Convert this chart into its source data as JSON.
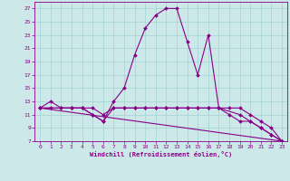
{
  "xlabel": "Windchill (Refroidissement éolien,°C)",
  "bg_color": "#cce8e8",
  "line_color": "#880088",
  "xlim": [
    -0.5,
    23.5
  ],
  "ylim": [
    7,
    28
  ],
  "xticks": [
    0,
    1,
    2,
    3,
    4,
    5,
    6,
    7,
    8,
    9,
    10,
    11,
    12,
    13,
    14,
    15,
    16,
    17,
    18,
    19,
    20,
    21,
    22,
    23
  ],
  "yticks": [
    7,
    9,
    11,
    13,
    15,
    17,
    19,
    21,
    23,
    25,
    27
  ],
  "series1_x": [
    0,
    1,
    2,
    3,
    4,
    5,
    6,
    7,
    8,
    9,
    10,
    11,
    12,
    13,
    14,
    15,
    16,
    17,
    18,
    19,
    20,
    21,
    22,
    23
  ],
  "series1_y": [
    12,
    13,
    12,
    12,
    12,
    11,
    10,
    13,
    15,
    20,
    24,
    26,
    27,
    27,
    22,
    17,
    23,
    12,
    11,
    10,
    10,
    9,
    8,
    7
  ],
  "series2_x": [
    0,
    1,
    2,
    3,
    4,
    5,
    6,
    7,
    8,
    9,
    10,
    11,
    12,
    13,
    14,
    15,
    16,
    17,
    18,
    19,
    20,
    21,
    22,
    23
  ],
  "series2_y": [
    12,
    12,
    12,
    12,
    12,
    12,
    11,
    12,
    12,
    12,
    12,
    12,
    12,
    12,
    12,
    12,
    12,
    12,
    12,
    12,
    11,
    10,
    9,
    7
  ],
  "series3_x": [
    0,
    2,
    3,
    4,
    5,
    6,
    7,
    8,
    9,
    10,
    11,
    12,
    13,
    14,
    15,
    16,
    17,
    19,
    20,
    21,
    22,
    23
  ],
  "series3_y": [
    12,
    12,
    12,
    12,
    11,
    10,
    12,
    12,
    12,
    12,
    12,
    12,
    12,
    12,
    12,
    12,
    12,
    11,
    10,
    9,
    8,
    7
  ],
  "series4_x": [
    0,
    23
  ],
  "series4_y": [
    12,
    7
  ]
}
